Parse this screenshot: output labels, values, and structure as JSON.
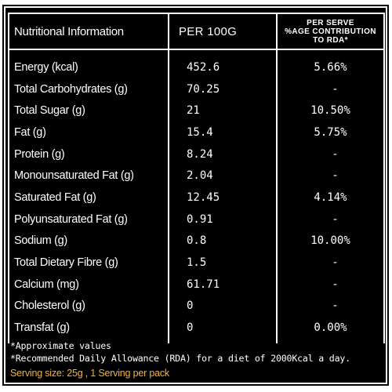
{
  "header": {
    "nutrient": "Nutritional Information",
    "per100": "PER 100G",
    "rda_line1": "PER SERVE",
    "rda_line2": "%AGE CONTRIBUTION",
    "rda_line3": "TO RDA*"
  },
  "rows": [
    {
      "name": "Energy (kcal)",
      "per100": "452.6",
      "rda": "5.66%"
    },
    {
      "name": "Total Carbohydrates (g)",
      "per100": "70.25",
      "rda": "-"
    },
    {
      "name": "Total Sugar (g)",
      "per100": "21",
      "rda": "10.50%"
    },
    {
      "name": "Fat (g)",
      "per100": "15.4",
      "rda": "5.75%"
    },
    {
      "name": "Protein (g)",
      "per100": "8.24",
      "rda": "-"
    },
    {
      "name": "Monounsaturated Fat (g)",
      "per100": "2.04",
      "rda": "-"
    },
    {
      "name": "Saturated Fat (g)",
      "per100": "12.45",
      "rda": "4.14%"
    },
    {
      "name": "Polyunsaturated Fat (g)",
      "per100": "0.91",
      "rda": "-"
    },
    {
      "name": "Sodium (g)",
      "per100": "0.8",
      "rda": "10.00%"
    },
    {
      "name": "Total Dietary Fibre (g)",
      "per100": "1.5",
      "rda": "-"
    },
    {
      "name": "Calcium (mg)",
      "per100": "61.71",
      "rda": "-"
    },
    {
      "name": "Cholesterol (g)",
      "per100": "0",
      "rda": "-"
    },
    {
      "name": "Transfat (g)",
      "per100": "0",
      "rda": "0.00%"
    }
  ],
  "notes": {
    "approx": "*Approximate values",
    "rda": "*Recommended Daily Allowance (RDA) for a diet of 2000Kcal a day.",
    "serving": "Serving size: 25g , 1 Serving per pack"
  },
  "colors": {
    "background": "#000000",
    "text": "#ffffff",
    "serving_text": "#f4b23c"
  }
}
